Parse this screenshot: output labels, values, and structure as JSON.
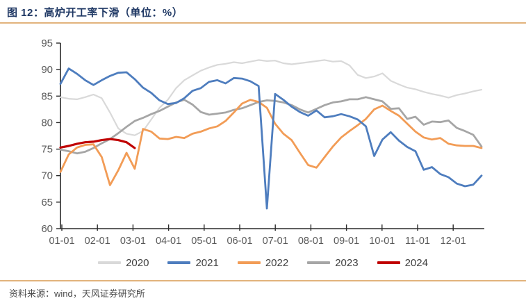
{
  "figure": {
    "title": "图 12：高炉开工率下滑（单位：%）",
    "source": "资料来源：wind，天风证券研究所"
  },
  "colors": {
    "title": "#1f3864",
    "rule": "#e2b37c",
    "axis": "#2b2b2b",
    "tick_label": "#595959",
    "legend_label": "#404040",
    "source_text": "#4a4a4a"
  },
  "chart_data": {
    "type": "line",
    "title": "图 12：高炉开工率下滑（单位：%）",
    "ylabel": "",
    "xlabel": "",
    "ylim": [
      60,
      95
    ],
    "y_ticks": [
      60,
      65,
      70,
      75,
      80,
      85,
      90,
      95
    ],
    "x_tick_labels": [
      "01-01",
      "02-01",
      "03-01",
      "04-01",
      "05-01",
      "06-01",
      "07-01",
      "08-01",
      "09-01",
      "10-01",
      "11-01",
      "12-01"
    ],
    "grid": false,
    "legend_position": "bottom-center",
    "points_per_series": 52,
    "x_unit": "week-of-year",
    "series": [
      {
        "name": "2020",
        "color": "#d9d9d9",
        "width": 2.2,
        "z": 1,
        "values": [
          84.8,
          84.5,
          84.4,
          84.8,
          85.3,
          84.6,
          81.9,
          78.9,
          77.9,
          77.6,
          78.4,
          80.6,
          82.8,
          84.3,
          86.5,
          88.0,
          88.9,
          89.8,
          90.4,
          90.9,
          91.1,
          91.4,
          91.2,
          91.5,
          91.8,
          91.6,
          91.7,
          91.2,
          91.0,
          91.2,
          91.4,
          91.6,
          91.8,
          91.5,
          91.6,
          90.8,
          89.0,
          88.4,
          88.7,
          89.3,
          87.9,
          87.2,
          86.6,
          86.3,
          85.8,
          85.4,
          85.1,
          84.7,
          85.2,
          85.5,
          85.9,
          86.2
        ]
      },
      {
        "name": "2021",
        "color": "#4e7dbe",
        "width": 2.8,
        "z": 4,
        "values": [
          87.3,
          90.2,
          89.2,
          88.0,
          87.1,
          88.0,
          88.8,
          89.4,
          89.5,
          88.2,
          86.6,
          85.6,
          84.2,
          83.5,
          83.7,
          84.6,
          86.0,
          86.5,
          87.7,
          88.0,
          87.4,
          88.4,
          88.3,
          87.8,
          86.9,
          63.8,
          85.4,
          84.3,
          83.0,
          82.0,
          81.3,
          82.3,
          81.0,
          81.2,
          81.6,
          81.2,
          80.6,
          79.3,
          73.7,
          76.8,
          78.2,
          76.6,
          75.4,
          74.6,
          71.1,
          71.6,
          70.3,
          69.7,
          68.5,
          68.0,
          68.3,
          70.0
        ]
      },
      {
        "name": "2022",
        "color": "#f29c56",
        "width": 2.8,
        "z": 3,
        "values": [
          70.7,
          74.0,
          75.3,
          75.8,
          75.9,
          73.5,
          68.2,
          71.0,
          74.3,
          71.3,
          78.8,
          78.3,
          77.0,
          76.9,
          77.3,
          77.1,
          77.9,
          78.3,
          78.9,
          79.3,
          80.3,
          81.9,
          83.6,
          84.3,
          83.9,
          82.8,
          79.8,
          77.9,
          76.7,
          74.3,
          72.0,
          71.5,
          73.5,
          75.5,
          77.2,
          78.4,
          79.5,
          80.7,
          82.5,
          83.2,
          82.2,
          81.3,
          79.8,
          78.3,
          77.2,
          76.8,
          77.1,
          76.0,
          75.7,
          75.6,
          75.6,
          75.2
        ]
      },
      {
        "name": "2023",
        "color": "#a6a6a6",
        "width": 2.8,
        "z": 2,
        "values": [
          74.9,
          74.6,
          74.2,
          74.5,
          75.2,
          76.1,
          76.9,
          78.0,
          79.2,
          80.3,
          80.9,
          81.6,
          82.2,
          83.0,
          83.8,
          84.3,
          83.4,
          82.0,
          81.5,
          81.7,
          81.9,
          82.4,
          82.7,
          83.3,
          83.9,
          84.2,
          84.1,
          83.8,
          83.3,
          82.5,
          81.9,
          82.6,
          83.3,
          83.8,
          84.0,
          84.4,
          84.4,
          84.8,
          84.4,
          84.0,
          82.6,
          82.7,
          80.7,
          81.1,
          79.6,
          80.2,
          80.1,
          80.4,
          79.0,
          78.4,
          77.7,
          75.5
        ]
      },
      {
        "name": "2024",
        "color": "#c00000",
        "width": 3.2,
        "z": 5,
        "values": [
          75.3,
          75.6,
          76.0,
          76.3,
          76.4,
          76.7,
          76.9,
          76.7,
          76.3,
          75.2
        ]
      }
    ]
  }
}
